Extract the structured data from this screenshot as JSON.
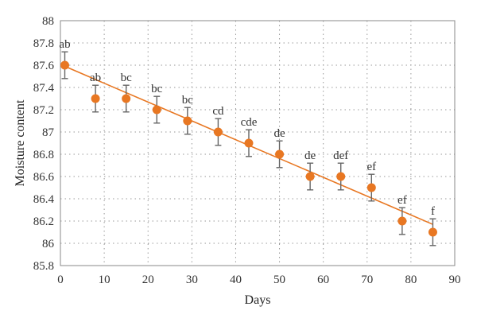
{
  "chart_data": {
    "type": "scatter",
    "title": "",
    "xlabel": "Days",
    "ylabel": "Moisture content",
    "xlim": [
      0,
      90
    ],
    "ylim": [
      85.8,
      88
    ],
    "x_ticks": [
      0,
      10,
      20,
      30,
      40,
      50,
      60,
      70,
      80,
      90
    ],
    "y_ticks": [
      85.8,
      86,
      86.2,
      86.4,
      86.6,
      86.8,
      87,
      87.2,
      87.4,
      87.6,
      87.8,
      88
    ],
    "y_tick_labels": [
      "85.8",
      "86",
      "86.2",
      "86.4",
      "86.6",
      "86.8",
      "87",
      "87.2",
      "87.4",
      "87.6",
      "87.8",
      "88"
    ],
    "grid": true,
    "grid_style": "dotted",
    "series": [
      {
        "marker_color": "#E87722",
        "x": [
          1,
          8,
          15,
          22,
          29,
          36,
          43,
          50,
          57,
          64,
          71,
          78,
          85
        ],
        "y": [
          87.6,
          87.3,
          87.3,
          87.2,
          87.1,
          87.0,
          86.9,
          86.8,
          86.6,
          86.6,
          86.5,
          86.2,
          86.1
        ],
        "error": [
          0.12,
          0.12,
          0.12,
          0.12,
          0.12,
          0.12,
          0.12,
          0.12,
          0.12,
          0.12,
          0.12,
          0.12,
          0.12
        ],
        "point_labels": [
          "ab",
          "ab",
          "bc",
          "bc",
          "bc",
          "cd",
          "cde",
          "de",
          "de",
          "def",
          "ef",
          "ef",
          "f"
        ]
      }
    ],
    "trendline": {
      "type": "linear",
      "color": "#E87722",
      "x_range": [
        1,
        85
      ],
      "y_range": [
        87.59,
        86.17
      ]
    },
    "error_bar_color": "#666666"
  }
}
